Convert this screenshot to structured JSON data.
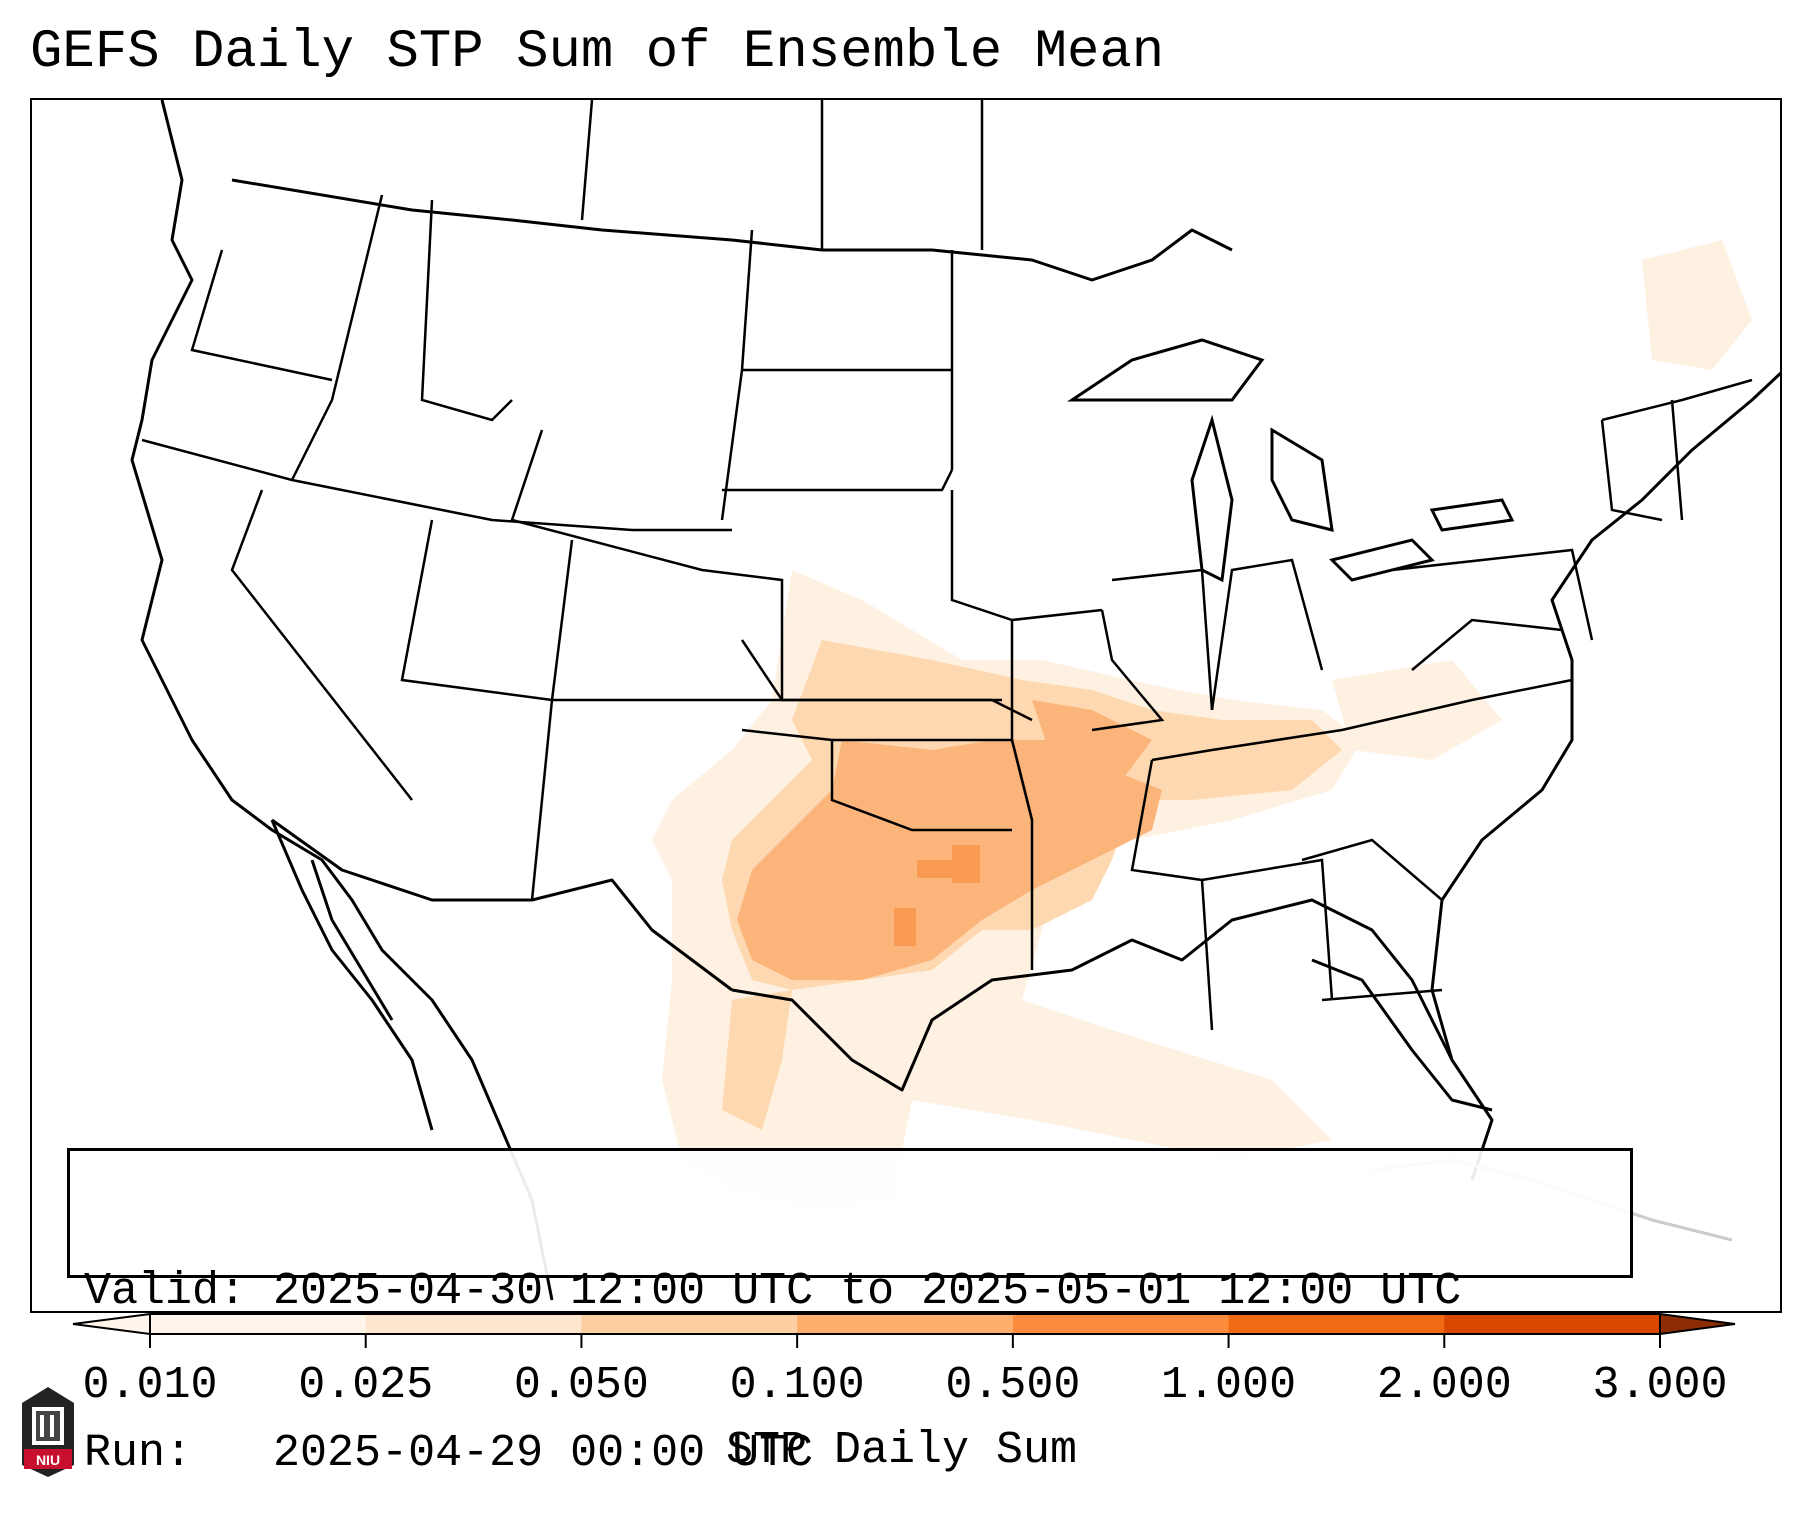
{
  "title": "GEFS Daily STP Sum of Ensemble Mean",
  "info": {
    "valid_label": "Valid:",
    "valid_value": "2025-04-30 12:00 UTC to 2025-05-01 12:00 UTC",
    "run_label": "Run:",
    "run_value": "2025-04-29 00:00 UTC"
  },
  "colorbar": {
    "label": "STP Daily Sum",
    "ticks": [
      "0.010",
      "0.025",
      "0.050",
      "0.100",
      "0.500",
      "1.000",
      "2.000",
      "3.000"
    ],
    "colors": [
      "#fff5eb",
      "#fee6ce",
      "#fdd0a2",
      "#fdae6b",
      "#fd8d3c",
      "#f16913",
      "#d94801",
      "#8c2d04"
    ]
  },
  "map_legend_reading": "Highest STP sums over Oklahoma / north Texas; lighter values extending into Kansas, Missouri, Arkansas, Kentucky and the western Gulf Coast",
  "logo": {
    "text": "NIU"
  }
}
